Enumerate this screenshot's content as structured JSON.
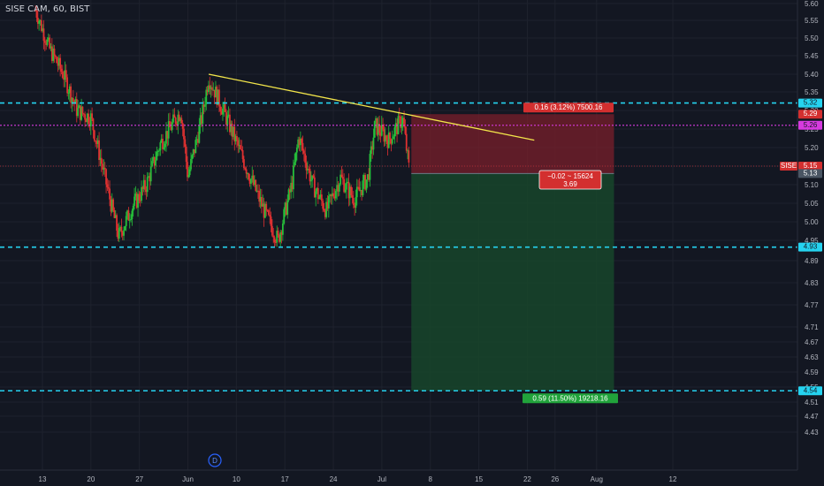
{
  "header": {
    "title": "SISE CAM, 60, BIST"
  },
  "colors": {
    "background": "#131722",
    "grid": "#1e222d",
    "up": "#26c03a",
    "down": "#e03131",
    "cyan_line": "#25d3f0",
    "magenta_line": "#d63adf",
    "trendline": "#f2e54a",
    "axis_text": "#b2b5be"
  },
  "chart_data": {
    "type": "candlestick",
    "symbol": "SISE",
    "exchange": "BIST",
    "interval": "60",
    "y_ticks": [
      "5.60",
      "5.55",
      "5.50",
      "5.45",
      "5.40",
      "5.35",
      "5.30",
      "5.25",
      "5.20",
      "5.15",
      "5.10",
      "5.05",
      "5.00",
      "4.95",
      "4.89",
      "4.83",
      "4.77",
      "4.71",
      "4.67",
      "4.63",
      "4.59",
      "4.55",
      "4.51",
      "4.47",
      "4.43"
    ],
    "x_ticks": [
      "13",
      "20",
      "27",
      "Jun",
      "10",
      "17",
      "24",
      "Jul",
      "8",
      "15",
      "22",
      "26",
      "Aug",
      "12"
    ],
    "swing_points": [
      {
        "date": "May 12",
        "price": 5.58
      },
      {
        "date": "May 14",
        "price": 5.47
      },
      {
        "date": "May 16",
        "price": 5.4
      },
      {
        "date": "May 18",
        "price": 5.3
      },
      {
        "date": "May 20",
        "price": 5.28
      },
      {
        "date": "May 22",
        "price": 5.12
      },
      {
        "date": "May 24",
        "price": 4.96
      },
      {
        "date": "May 26",
        "price": 5.04
      },
      {
        "date": "May 28",
        "price": 5.1
      },
      {
        "date": "May 30",
        "price": 5.21
      },
      {
        "date": "Jun 2",
        "price": 5.3
      },
      {
        "date": "Jun 3",
        "price": 5.12
      },
      {
        "date": "Jun 5",
        "price": 5.28
      },
      {
        "date": "Jun 6",
        "price": 5.39
      },
      {
        "date": "Jun 9",
        "price": 5.26
      },
      {
        "date": "Jun 12",
        "price": 5.12
      },
      {
        "date": "Jun 14",
        "price": 5.03
      },
      {
        "date": "Jun 16",
        "price": 4.95
      },
      {
        "date": "Jun 18",
        "price": 5.1
      },
      {
        "date": "Jun 19",
        "price": 5.23
      },
      {
        "date": "Jun 21",
        "price": 5.1
      },
      {
        "date": "Jun 23",
        "price": 5.03
      },
      {
        "date": "Jun 25",
        "price": 5.12
      },
      {
        "date": "Jun 27",
        "price": 5.06
      },
      {
        "date": "Jun 29",
        "price": 5.12
      },
      {
        "date": "Jun 30",
        "price": 5.26
      },
      {
        "date": "Jul 2",
        "price": 5.22
      },
      {
        "date": "Jul 4",
        "price": 5.28
      },
      {
        "date": "Jul 5",
        "price": 5.13
      }
    ],
    "trendline": {
      "from": {
        "date": "Jun 6",
        "price": 5.4
      },
      "to": {
        "date": "Jul 23",
        "price": 5.22
      }
    },
    "horizontal_lines": [
      {
        "price": 5.32,
        "label": "5.32",
        "color": "cyan"
      },
      {
        "price": 5.26,
        "label": "5.26",
        "color": "magenta"
      },
      {
        "price": 4.93,
        "label": "4.93",
        "color": "cyan"
      },
      {
        "price": 4.54,
        "label": "4.54",
        "color": "cyan"
      }
    ],
    "position": {
      "type": "short",
      "entry": 5.13,
      "stop": 5.29,
      "target": 4.54,
      "start_date": "Jul 5",
      "end_date": "Aug 3",
      "stop_label": "0.16 (3.12%) 7500.16",
      "target_label": "0.59 (11.50%) 19218.16",
      "center_label_line1": "−0.02 ~ 15624",
      "center_label_line2": "3.69"
    },
    "price_labels": {
      "symbol": "SISE",
      "last": "5.15",
      "entry": "5.13",
      "stop": "5.29"
    },
    "events": [
      {
        "date": "Jun 3",
        "label": "D"
      }
    ]
  }
}
